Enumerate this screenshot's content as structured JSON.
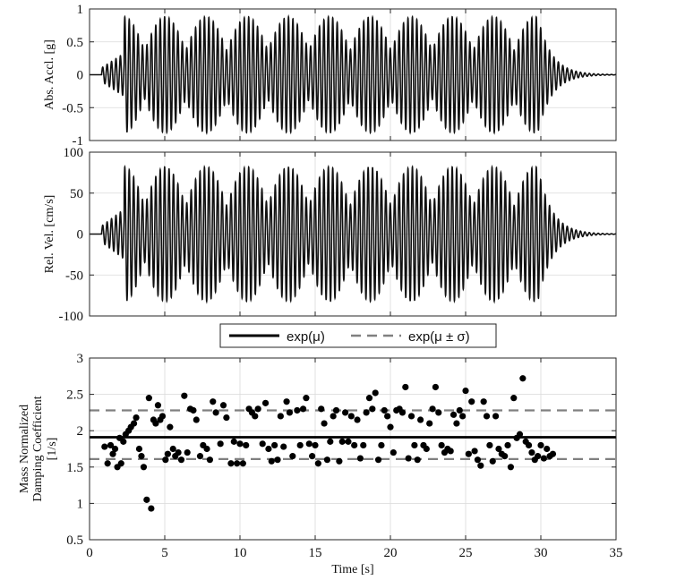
{
  "chart_data": [
    {
      "type": "line",
      "panel": "top",
      "ylabel": "Abs. Accl. [g]",
      "xlim": [
        0,
        35
      ],
      "ylim": [
        -1,
        1
      ],
      "yticks": [
        1,
        0.5,
        0,
        -0.5,
        -1
      ],
      "ytick_labels": [
        "1",
        "0.5",
        "0",
        "-0.5",
        "-1"
      ],
      "xticks": [
        0,
        5,
        10,
        15,
        20,
        25,
        30,
        35
      ],
      "grid": true,
      "signal": {
        "t_start": 0.8,
        "ramp_up_end": 2.3,
        "steady_end": 29.8,
        "decay_end": 35,
        "carrier_frequency_hz": 3.4,
        "beat_frequency_hz": 0.3663,
        "peak": 0.88,
        "color": "#111111"
      }
    },
    {
      "type": "line",
      "panel": "middle",
      "ylabel": "Rel. Vel. [cm/s]",
      "xlim": [
        0,
        35
      ],
      "ylim": [
        -100,
        100
      ],
      "yticks": [
        100,
        50,
        0,
        -50,
        -100
      ],
      "ytick_labels": [
        "100",
        "50",
        "0",
        "-50",
        "-100"
      ],
      "xticks": [
        0,
        5,
        10,
        15,
        20,
        25,
        30,
        35
      ],
      "grid": true,
      "signal": {
        "t_start": 0.8,
        "ramp_up_end": 2.3,
        "steady_end": 29.8,
        "decay_end": 35,
        "carrier_frequency_hz": 3.4,
        "beat_frequency_hz": 0.3663,
        "peak": 82,
        "color": "#111111"
      }
    },
    {
      "type": "scatter",
      "panel": "bottom",
      "ylabel_line1": "Mass Normalized",
      "ylabel_line2": "Damping Coefficient",
      "ylabel_line3": "[1/s]",
      "xlabel": "Time [s]",
      "xlim": [
        0,
        35
      ],
      "ylim": [
        0.5,
        3
      ],
      "yticks": [
        3,
        2.5,
        2,
        1.5,
        1,
        0.5
      ],
      "ytick_labels": [
        "3",
        "2.5",
        "2",
        "1.5",
        "1",
        "0.5"
      ],
      "xticks": [
        0,
        5,
        10,
        15,
        20,
        25,
        30,
        35
      ],
      "xtick_labels": [
        "0",
        "5",
        "10",
        "15",
        "20",
        "25",
        "30",
        "35"
      ],
      "grid": true,
      "legend": {
        "placement": "top-center-outside",
        "entries": [
          {
            "label": "exp(μ)",
            "style": "solid",
            "color": "#000000"
          },
          {
            "label": "exp(μ ± σ)",
            "style": "dashed",
            "color": "#808080"
          }
        ]
      },
      "mean_line": 1.91,
      "band_lines": [
        1.61,
        2.28
      ],
      "points": [
        [
          1.0,
          1.78
        ],
        [
          1.2,
          1.55
        ],
        [
          1.4,
          1.8
        ],
        [
          1.55,
          1.68
        ],
        [
          1.7,
          1.75
        ],
        [
          1.85,
          1.5
        ],
        [
          2.0,
          1.9
        ],
        [
          2.1,
          1.55
        ],
        [
          2.25,
          1.85
        ],
        [
          2.4,
          1.95
        ],
        [
          2.6,
          2.0
        ],
        [
          2.75,
          2.05
        ],
        [
          2.95,
          2.1
        ],
        [
          3.1,
          2.18
        ],
        [
          3.3,
          1.75
        ],
        [
          3.45,
          1.65
        ],
        [
          3.6,
          1.5
        ],
        [
          3.8,
          1.05
        ],
        [
          3.95,
          2.45
        ],
        [
          4.1,
          0.93
        ],
        [
          4.25,
          2.15
        ],
        [
          4.4,
          2.1
        ],
        [
          4.55,
          2.35
        ],
        [
          4.7,
          2.15
        ],
        [
          4.85,
          2.2
        ],
        [
          5.05,
          1.6
        ],
        [
          5.2,
          1.68
        ],
        [
          5.35,
          2.05
        ],
        [
          5.55,
          1.75
        ],
        [
          5.7,
          1.65
        ],
        [
          5.9,
          1.7
        ],
        [
          6.1,
          1.6
        ],
        [
          6.3,
          2.48
        ],
        [
          6.5,
          1.7
        ],
        [
          6.7,
          2.3
        ],
        [
          6.9,
          2.28
        ],
        [
          7.1,
          2.15
        ],
        [
          7.35,
          1.65
        ],
        [
          7.55,
          1.8
        ],
        [
          7.8,
          1.75
        ],
        [
          8.0,
          1.6
        ],
        [
          8.2,
          2.4
        ],
        [
          8.4,
          2.25
        ],
        [
          8.7,
          1.82
        ],
        [
          8.9,
          2.35
        ],
        [
          9.1,
          2.18
        ],
        [
          9.4,
          1.55
        ],
        [
          9.6,
          1.85
        ],
        [
          9.8,
          1.55
        ],
        [
          10.0,
          1.82
        ],
        [
          10.2,
          1.55
        ],
        [
          10.4,
          1.8
        ],
        [
          10.6,
          2.3
        ],
        [
          10.8,
          2.25
        ],
        [
          11.0,
          2.2
        ],
        [
          11.2,
          2.3
        ],
        [
          11.5,
          1.82
        ],
        [
          11.7,
          2.38
        ],
        [
          11.9,
          1.75
        ],
        [
          12.1,
          1.58
        ],
        [
          12.3,
          1.8
        ],
        [
          12.5,
          1.6
        ],
        [
          12.7,
          2.2
        ],
        [
          12.9,
          1.78
        ],
        [
          13.1,
          2.4
        ],
        [
          13.3,
          2.25
        ],
        [
          13.5,
          1.65
        ],
        [
          13.8,
          2.28
        ],
        [
          14.0,
          1.8
        ],
        [
          14.2,
          2.3
        ],
        [
          14.4,
          2.45
        ],
        [
          14.6,
          1.82
        ],
        [
          14.8,
          1.65
        ],
        [
          15.0,
          1.8
        ],
        [
          15.2,
          1.55
        ],
        [
          15.4,
          2.3
        ],
        [
          15.6,
          2.1
        ],
        [
          15.8,
          1.6
        ],
        [
          16.0,
          1.85
        ],
        [
          16.2,
          2.2
        ],
        [
          16.4,
          2.28
        ],
        [
          16.6,
          1.58
        ],
        [
          16.8,
          1.85
        ],
        [
          17.0,
          2.25
        ],
        [
          17.2,
          1.85
        ],
        [
          17.4,
          2.2
        ],
        [
          17.6,
          1.8
        ],
        [
          17.8,
          2.15
        ],
        [
          18.0,
          1.62
        ],
        [
          18.2,
          1.8
        ],
        [
          18.4,
          2.25
        ],
        [
          18.6,
          2.45
        ],
        [
          18.8,
          2.3
        ],
        [
          19.0,
          2.52
        ],
        [
          19.2,
          1.6
        ],
        [
          19.4,
          1.8
        ],
        [
          19.6,
          2.28
        ],
        [
          19.8,
          2.2
        ],
        [
          20.0,
          2.05
        ],
        [
          20.2,
          1.7
        ],
        [
          20.4,
          2.28
        ],
        [
          20.6,
          2.3
        ],
        [
          20.8,
          2.25
        ],
        [
          21.0,
          2.6
        ],
        [
          21.2,
          1.62
        ],
        [
          21.4,
          2.2
        ],
        [
          21.6,
          1.8
        ],
        [
          21.8,
          1.6
        ],
        [
          22.0,
          2.15
        ],
        [
          22.2,
          1.8
        ],
        [
          22.4,
          1.75
        ],
        [
          22.6,
          2.1
        ],
        [
          22.8,
          2.3
        ],
        [
          23.0,
          2.6
        ],
        [
          23.2,
          2.25
        ],
        [
          23.4,
          1.8
        ],
        [
          23.6,
          1.7
        ],
        [
          23.8,
          1.75
        ],
        [
          24.0,
          1.72
        ],
        [
          24.2,
          2.22
        ],
        [
          24.4,
          2.1
        ],
        [
          24.6,
          2.28
        ],
        [
          24.8,
          2.2
        ],
        [
          25.0,
          2.55
        ],
        [
          25.2,
          1.68
        ],
        [
          25.4,
          2.4
        ],
        [
          25.6,
          1.72
        ],
        [
          25.8,
          1.6
        ],
        [
          26.0,
          1.52
        ],
        [
          26.2,
          2.4
        ],
        [
          26.4,
          2.2
        ],
        [
          26.6,
          1.8
        ],
        [
          26.8,
          1.58
        ],
        [
          27.0,
          2.2
        ],
        [
          27.2,
          1.75
        ],
        [
          27.4,
          1.68
        ],
        [
          27.6,
          1.65
        ],
        [
          27.8,
          1.8
        ],
        [
          28.0,
          1.5
        ],
        [
          28.2,
          2.45
        ],
        [
          28.4,
          1.9
        ],
        [
          28.6,
          1.95
        ],
        [
          28.8,
          2.72
        ],
        [
          29.0,
          1.85
        ],
        [
          29.2,
          1.8
        ],
        [
          29.4,
          1.7
        ],
        [
          29.6,
          1.6
        ],
        [
          29.8,
          1.65
        ],
        [
          30.0,
          1.8
        ],
        [
          30.2,
          1.62
        ],
        [
          30.4,
          1.75
        ],
        [
          30.6,
          1.65
        ],
        [
          30.8,
          1.68
        ]
      ]
    }
  ]
}
